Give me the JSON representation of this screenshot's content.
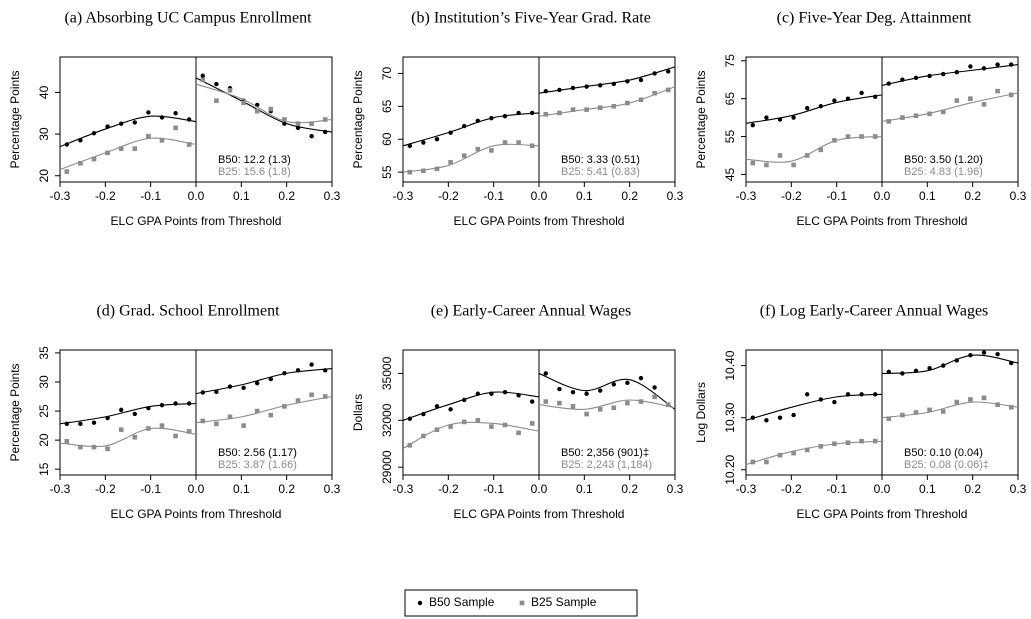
{
  "chart_data": [
    {
      "type": "scatter",
      "title": "(a) Absorbing UC Campus Enrollment",
      "xlabel": "ELC GPA Points from Threshold",
      "ylabel": "Percentage Points",
      "xlim": [
        -0.3,
        0.3
      ],
      "xticks": [
        -0.3,
        -0.2,
        -0.1,
        {
          "value": 0,
          "label": "0.0"
        },
        0.1,
        0.2,
        0.3
      ],
      "ylim": [
        18.5,
        48.5
      ],
      "yticks": [
        20,
        30,
        40
      ],
      "x": [
        -0.285,
        -0.255,
        -0.225,
        -0.195,
        -0.165,
        -0.135,
        -0.105,
        -0.075,
        -0.045,
        -0.015,
        0.015,
        0.045,
        0.075,
        0.105,
        0.135,
        0.165,
        0.195,
        0.225,
        0.255,
        0.285
      ],
      "fit_x_left": [
        -0.3,
        -0.2,
        -0.1,
        0
      ],
      "fit_x_right": [
        0,
        0.1,
        0.2,
        0.3
      ],
      "series": [
        {
          "color": "#000000",
          "marker": "circle",
          "values": [
            27.5,
            28.5,
            30.2,
            31.8,
            32.5,
            32.8,
            35.2,
            34,
            35,
            33.5,
            44,
            42,
            41,
            38,
            37,
            35.5,
            32.5,
            31.5,
            29.5,
            30.5
          ],
          "fit_left": [
            27,
            31.2,
            34.3,
            33
          ],
          "fit_right": [
            43.5,
            38,
            32.5,
            30.5
          ],
          "annotation": "B50: 12.2 (1.3)"
        },
        {
          "color": "#8c8c8c",
          "marker": "square",
          "values": [
            21,
            23,
            24,
            25.5,
            26.5,
            26.5,
            29.5,
            28.5,
            31.5,
            27.5,
            43,
            38,
            40.5,
            37.5,
            35.5,
            36,
            33.5,
            32.5,
            32.5,
            33.5
          ],
          "fit_left": [
            21.5,
            25.5,
            29,
            27.5
          ],
          "fit_right": [
            42,
            38.5,
            33,
            33.5
          ],
          "annotation": "B25: 15.6 (1.8)"
        }
      ]
    },
    {
      "type": "scatter",
      "title": "(b) Institution’s Five-Year Grad. Rate",
      "xlabel": "ELC GPA Points from Threshold",
      "ylabel": "Percentage Points",
      "xlim": [
        -0.3,
        0.3
      ],
      "xticks": [
        -0.3,
        -0.2,
        -0.1,
        {
          "value": 0,
          "label": "0.0"
        },
        0.1,
        0.2,
        0.3
      ],
      "ylim": [
        53.5,
        72.5
      ],
      "yticks": [
        55,
        60,
        65,
        70
      ],
      "x": [
        -0.285,
        -0.255,
        -0.225,
        -0.195,
        -0.165,
        -0.135,
        -0.105,
        -0.075,
        -0.045,
        -0.015,
        0.015,
        0.045,
        0.075,
        0.105,
        0.135,
        0.165,
        0.195,
        0.225,
        0.255,
        0.285
      ],
      "fit_x_left": [
        -0.3,
        -0.2,
        -0.1,
        0
      ],
      "fit_x_right": [
        0,
        0.1,
        0.2,
        0.3
      ],
      "series": [
        {
          "color": "#000000",
          "marker": "circle",
          "values": [
            59,
            59.5,
            60,
            61,
            62,
            62.8,
            63.2,
            63.5,
            64,
            64,
            67.3,
            67.5,
            67.8,
            68,
            68.2,
            68.4,
            68.8,
            69,
            70,
            70.3
          ],
          "fit_left": [
            59,
            61,
            63.3,
            64
          ],
          "fit_right": [
            67,
            68,
            69,
            71
          ],
          "annotation": "B50: 3.33 (0.51)"
        },
        {
          "color": "#8c8c8c",
          "marker": "square",
          "values": [
            55,
            55.2,
            55.5,
            56.5,
            57.5,
            58.5,
            58.3,
            59.5,
            59.5,
            59,
            63.8,
            64,
            64.5,
            64.5,
            64.8,
            65,
            65.5,
            66,
            67,
            67.5
          ],
          "fit_left": [
            55,
            56,
            59,
            59
          ],
          "fit_right": [
            63.5,
            64.5,
            65.5,
            68
          ],
          "annotation": "B25: 5.41 (0.83)"
        }
      ]
    },
    {
      "type": "scatter",
      "title": "(c) Five-Year Deg. Attainment",
      "xlabel": "ELC GPA Points from Threshold",
      "ylabel": "Percentage Points",
      "xlim": [
        -0.3,
        0.3
      ],
      "xticks": [
        -0.3,
        -0.2,
        -0.1,
        {
          "value": 0,
          "label": "0.0"
        },
        0.1,
        0.2,
        0.3
      ],
      "ylim": [
        43,
        76
      ],
      "yticks": [
        45,
        55,
        65,
        75
      ],
      "x": [
        -0.285,
        -0.255,
        -0.225,
        -0.195,
        -0.165,
        -0.135,
        -0.105,
        -0.075,
        -0.045,
        -0.015,
        0.015,
        0.045,
        0.075,
        0.105,
        0.135,
        0.165,
        0.195,
        0.225,
        0.255,
        0.285
      ],
      "fit_x_left": [
        -0.3,
        -0.2,
        -0.1,
        0
      ],
      "fit_x_right": [
        0,
        0.1,
        0.2,
        0.3
      ],
      "series": [
        {
          "color": "#000000",
          "marker": "circle",
          "values": [
            58,
            60,
            59.5,
            60,
            62.5,
            63,
            64.5,
            65,
            66.5,
            65.5,
            69,
            70,
            70.5,
            71,
            71.5,
            72,
            73.5,
            73,
            74,
            74
          ],
          "fit_left": [
            58.5,
            60.5,
            64,
            66
          ],
          "fit_right": [
            68.5,
            71,
            72.5,
            74
          ],
          "annotation": "B50: 3.50 (1.20)"
        },
        {
          "color": "#8c8c8c",
          "marker": "square",
          "values": [
            48,
            47.5,
            50,
            47.5,
            50,
            51.5,
            54,
            55,
            55,
            55,
            59,
            60,
            60.5,
            61,
            61.5,
            64.5,
            65,
            63.5,
            67,
            66
          ],
          "fit_left": [
            49,
            48.5,
            54,
            55
          ],
          "fit_right": [
            59,
            61,
            64,
            66.5
          ],
          "annotation": "B25: 4.83 (1.96)"
        }
      ]
    },
    {
      "type": "scatter",
      "title": "(d) Grad. School Enrollment",
      "xlabel": "ELC GPA Points from Threshold",
      "ylabel": "Percentage Points",
      "xlim": [
        -0.3,
        0.3
      ],
      "xticks": [
        -0.3,
        -0.2,
        -0.1,
        {
          "value": 0,
          "label": "0.0"
        },
        0.1,
        0.2,
        0.3
      ],
      "ylim": [
        14,
        35.5
      ],
      "yticks": [
        15,
        20,
        25,
        30,
        35
      ],
      "x": [
        -0.285,
        -0.255,
        -0.225,
        -0.195,
        -0.165,
        -0.135,
        -0.105,
        -0.075,
        -0.045,
        -0.015,
        0.015,
        0.045,
        0.075,
        0.105,
        0.135,
        0.165,
        0.195,
        0.225,
        0.255,
        0.285
      ],
      "fit_x_left": [
        -0.3,
        -0.2,
        -0.1,
        0
      ],
      "fit_x_right": [
        0,
        0.1,
        0.2,
        0.3
      ],
      "series": [
        {
          "color": "#000000",
          "marker": "circle",
          "values": [
            22.8,
            22.8,
            23,
            23.8,
            25.2,
            24.5,
            25.5,
            26,
            26.3,
            26.3,
            28.2,
            28.3,
            29.2,
            29,
            29.8,
            30.5,
            31.5,
            32,
            33,
            32
          ],
          "fit_left": [
            22.8,
            24,
            25.8,
            26.3
          ],
          "fit_right": [
            28,
            29.5,
            31.5,
            32.3
          ],
          "annotation": "B50: 2.56 (1.17)"
        },
        {
          "color": "#8c8c8c",
          "marker": "square",
          "values": [
            19.8,
            18.8,
            18.8,
            18.5,
            21.8,
            20.5,
            22,
            22.5,
            20.7,
            21.5,
            23.3,
            22.8,
            24,
            22.5,
            25,
            24.3,
            25.8,
            26.8,
            27.8,
            27.5
          ],
          "fit_left": [
            19.5,
            19,
            22,
            21
          ],
          "fit_right": [
            23,
            24,
            26,
            27.5
          ],
          "annotation": "B25: 3.87 (1.66)"
        }
      ]
    },
    {
      "type": "scatter",
      "title": "(e) Early-Career Annual Wages",
      "xlabel": "ELC GPA Points from Threshold",
      "ylabel": "Dollars",
      "xlim": [
        -0.3,
        0.3
      ],
      "xticks": [
        -0.3,
        -0.2,
        -0.1,
        {
          "value": 0,
          "label": "0.0"
        },
        0.1,
        0.2,
        0.3
      ],
      "ylim": [
        28500,
        36500
      ],
      "yticks": [
        29000,
        32000,
        35000
      ],
      "x": [
        -0.285,
        -0.255,
        -0.225,
        -0.195,
        -0.165,
        -0.135,
        -0.105,
        -0.075,
        -0.045,
        -0.015,
        0.015,
        0.045,
        0.075,
        0.105,
        0.135,
        0.165,
        0.195,
        0.225,
        0.255,
        0.285
      ],
      "fit_x_left": [
        -0.3,
        -0.2,
        -0.1,
        0
      ],
      "fit_x_right": [
        0,
        0.1,
        0.2,
        0.3
      ],
      "series": [
        {
          "color": "#000000",
          "marker": "circle",
          "values": [
            32100,
            32400,
            32900,
            32700,
            33300,
            33700,
            33700,
            33800,
            33600,
            33200,
            35000,
            34000,
            33800,
            33700,
            33900,
            34300,
            34400,
            34700,
            34100,
            33000
          ],
          "fit_left": [
            32000,
            33000,
            33800,
            33500
          ],
          "fit_right": [
            35000,
            33900,
            34600,
            32700
          ],
          "annotation": "B50: 2,356 (901)‡"
        },
        {
          "color": "#8c8c8c",
          "marker": "square",
          "values": [
            30400,
            31000,
            31400,
            31600,
            31900,
            32000,
            31600,
            31700,
            31200,
            31800,
            33200,
            33100,
            32900,
            32400,
            32700,
            32800,
            33100,
            33200,
            33500,
            33000
          ],
          "fit_left": [
            30200,
            31700,
            31800,
            31300
          ],
          "fit_right": [
            33000,
            32700,
            33300,
            32800
          ],
          "annotation": "B25: 2,243 (1,184)"
        }
      ]
    },
    {
      "type": "scatter",
      "title": "(f) Log Early-Career Annual Wages",
      "xlabel": "ELC GPA Points from Threshold",
      "ylabel": "Log Dollars",
      "xlim": [
        -0.3,
        0.3
      ],
      "xticks": [
        -0.3,
        -0.2,
        -0.1,
        {
          "value": 0,
          "label": "0.0"
        },
        0.1,
        0.2,
        0.3
      ],
      "ylim": [
        10.19,
        10.43
      ],
      "yticks": [
        {
          "value": 10.2,
          "label": "10.20"
        },
        {
          "value": 10.3,
          "label": "10.30"
        },
        {
          "value": 10.4,
          "label": "10.40"
        }
      ],
      "x": [
        -0.285,
        -0.255,
        -0.225,
        -0.195,
        -0.165,
        -0.135,
        -0.105,
        -0.075,
        -0.045,
        -0.015,
        0.015,
        0.045,
        0.075,
        0.105,
        0.135,
        0.165,
        0.195,
        0.225,
        0.255,
        0.285
      ],
      "fit_x_left": [
        -0.3,
        -0.2,
        -0.1,
        0
      ],
      "fit_x_right": [
        0,
        0.1,
        0.2,
        0.3
      ],
      "series": [
        {
          "color": "#000000",
          "marker": "circle",
          "values": [
            10.3,
            10.295,
            10.3,
            10.305,
            10.345,
            10.335,
            10.33,
            10.345,
            10.345,
            10.345,
            10.388,
            10.385,
            10.39,
            10.395,
            10.4,
            10.41,
            10.42,
            10.425,
            10.422,
            10.405
          ],
          "fit_left": [
            10.295,
            10.32,
            10.34,
            10.345
          ],
          "fit_right": [
            10.385,
            10.39,
            10.42,
            10.405
          ],
          "annotation": "B50: 0.10 (0.04)"
        },
        {
          "color": "#8c8c8c",
          "marker": "square",
          "values": [
            10.215,
            10.215,
            10.228,
            10.232,
            10.238,
            10.245,
            10.25,
            10.252,
            10.255,
            10.255,
            10.298,
            10.305,
            10.31,
            10.315,
            10.312,
            10.33,
            10.335,
            10.338,
            10.325,
            10.32
          ],
          "fit_left": [
            10.21,
            10.235,
            10.25,
            10.255
          ],
          "fit_right": [
            10.3,
            10.31,
            10.33,
            10.32
          ],
          "annotation": "B25: 0.08 (0.06)‡"
        }
      ]
    }
  ],
  "legend": [
    {
      "name": "B50 Sample",
      "color": "#000000",
      "marker": "circle"
    },
    {
      "name": "B25 Sample",
      "color": "#8c8c8c",
      "marker": "square"
    }
  ]
}
